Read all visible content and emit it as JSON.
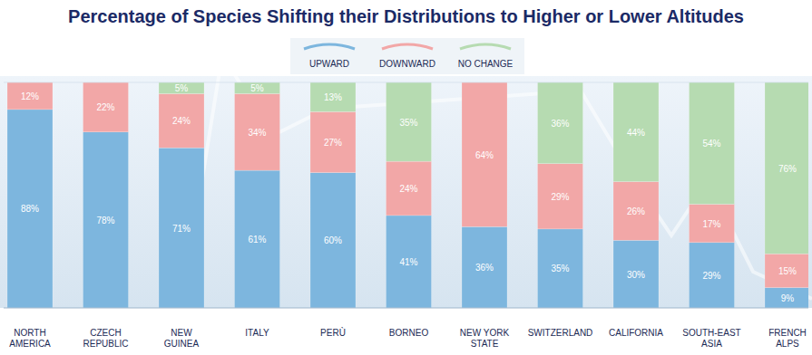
{
  "chart_data": {
    "type": "bar",
    "title": "Percentage of Species Shifting their Distributions to Higher or Lower Altitudes",
    "categories": [
      "NORTH AMERICA",
      "CZECH REPUBLIC",
      "NEW GUINEA",
      "ITALY",
      "PERÙ",
      "BORNEO",
      "NEW YORK STATE",
      "SWITZERLAND",
      "CALIFORNIA",
      "SOUTH-EAST ASIA",
      "FRENCH ALPS"
    ],
    "series": [
      {
        "name": "UPWARD",
        "color": "#7db6de",
        "values": [
          88,
          78,
          71,
          61,
          60,
          41,
          36,
          35,
          30,
          29,
          9
        ],
        "value_labels": [
          "88%",
          "78%",
          "71%",
          "61%",
          "60%",
          "41%",
          "36%",
          "35%",
          "30%",
          "29%",
          "9%"
        ]
      },
      {
        "name": "DOWNWARD",
        "color": "#f2a7a7",
        "values": [
          12,
          22,
          24,
          34,
          27,
          24,
          64,
          29,
          26,
          17,
          15
        ],
        "value_labels": [
          "12%",
          "22%",
          "24%",
          "34%",
          "27%",
          "24%",
          "64%",
          "29%",
          "26%",
          "17%",
          "15%"
        ]
      },
      {
        "name": "NO CHANGE",
        "color": "#b6dbb1",
        "values": [
          0,
          0,
          5,
          5,
          13,
          35,
          0,
          36,
          44,
          54,
          76
        ],
        "value_labels": [
          null,
          null,
          "5%",
          "5%",
          "13%",
          "35%",
          null,
          "36%",
          "44%",
          "54%",
          "76%"
        ]
      }
    ],
    "ylim": [
      0,
      100
    ],
    "stacked": true,
    "data_labels": true,
    "tick_labels": "x",
    "legend": "top",
    "grid": false
  }
}
